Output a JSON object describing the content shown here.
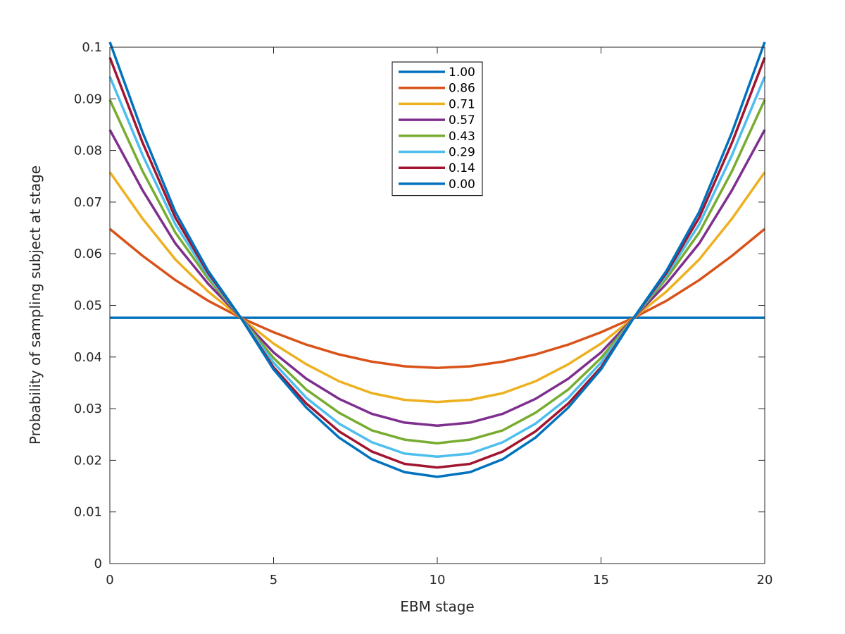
{
  "chart_data": {
    "type": "line",
    "title": "",
    "xlabel": "EBM stage",
    "ylabel": "Probability of sampling subject at stage",
    "xlim": [
      0,
      20
    ],
    "ylim": [
      0,
      0.1
    ],
    "xticks": [
      0,
      5,
      10,
      15,
      20
    ],
    "xtick_labels": [
      "0",
      "5",
      "10",
      "15",
      "20"
    ],
    "yticks": [
      0,
      0.01,
      0.02,
      0.03,
      0.04,
      0.05,
      0.06,
      0.07,
      0.08,
      0.09,
      0.1
    ],
    "ytick_labels": [
      "0",
      "0.01",
      "0.02",
      "0.03",
      "0.04",
      "0.05",
      "0.06",
      "0.07",
      "0.08",
      "0.09",
      "0.1"
    ],
    "grid": false,
    "legend_position": "top-center",
    "x": [
      0,
      1,
      2,
      3,
      4,
      5,
      6,
      7,
      8,
      9,
      10,
      11,
      12,
      13,
      14,
      15,
      16,
      17,
      18,
      19,
      20
    ],
    "series": [
      {
        "name": "1.00",
        "color": "#0072BD",
        "values": [
          0.0476,
          0.0476,
          0.0476,
          0.0476,
          0.0476,
          0.0476,
          0.0476,
          0.0476,
          0.0476,
          0.0476,
          0.0476,
          0.0476,
          0.0476,
          0.0476,
          0.0476,
          0.0476,
          0.0476,
          0.0476,
          0.0476,
          0.0476,
          0.0476
        ]
      },
      {
        "name": "0.86",
        "color": "#D95319",
        "values": [
          0.0648,
          0.0596,
          0.0549,
          0.0509,
          0.0476,
          0.0448,
          0.0424,
          0.0405,
          0.0391,
          0.0382,
          0.0379,
          0.0382,
          0.0391,
          0.0405,
          0.0424,
          0.0448,
          0.0476,
          0.0509,
          0.0549,
          0.0596,
          0.0648
        ]
      },
      {
        "name": "0.71",
        "color": "#EDB120",
        "values": [
          0.0758,
          0.0668,
          0.0589,
          0.0527,
          0.0476,
          0.0426,
          0.0386,
          0.0353,
          0.033,
          0.0317,
          0.0313,
          0.0317,
          0.033,
          0.0353,
          0.0386,
          0.0426,
          0.0476,
          0.0527,
          0.0589,
          0.0668,
          0.0758
        ]
      },
      {
        "name": "0.57",
        "color": "#7E2F8E",
        "values": [
          0.084,
          0.0723,
          0.062,
          0.0542,
          0.0476,
          0.0409,
          0.0358,
          0.0319,
          0.029,
          0.0273,
          0.0267,
          0.0273,
          0.029,
          0.0319,
          0.0358,
          0.0409,
          0.0476,
          0.0542,
          0.062,
          0.0723,
          0.084
        ]
      },
      {
        "name": "0.43",
        "color": "#77AC30",
        "values": [
          0.0898,
          0.076,
          0.0641,
          0.0552,
          0.0476,
          0.0398,
          0.0337,
          0.0292,
          0.0258,
          0.024,
          0.0233,
          0.024,
          0.0258,
          0.0292,
          0.0337,
          0.0398,
          0.0476,
          0.0552,
          0.0641,
          0.076,
          0.0898
        ]
      },
      {
        "name": "0.29",
        "color": "#4DBEEE",
        "values": [
          0.0943,
          0.0791,
          0.0657,
          0.0558,
          0.0476,
          0.0389,
          0.0321,
          0.0271,
          0.0235,
          0.0213,
          0.0207,
          0.0213,
          0.0235,
          0.0271,
          0.0321,
          0.0389,
          0.0476,
          0.0558,
          0.0657,
          0.0791,
          0.0943
        ]
      },
      {
        "name": "0.14",
        "color": "#A2142F",
        "values": [
          0.098,
          0.0815,
          0.067,
          0.0563,
          0.0476,
          0.038,
          0.031,
          0.0256,
          0.0217,
          0.0193,
          0.0186,
          0.0193,
          0.0217,
          0.0256,
          0.031,
          0.038,
          0.0476,
          0.0563,
          0.067,
          0.0815,
          0.098
        ]
      },
      {
        "name": "0.00",
        "color": "#0072BD",
        "values": [
          0.101,
          0.0835,
          0.0681,
          0.0567,
          0.0476,
          0.0376,
          0.0302,
          0.0244,
          0.0202,
          0.0177,
          0.0168,
          0.0177,
          0.0202,
          0.0244,
          0.0302,
          0.0376,
          0.0476,
          0.0567,
          0.0681,
          0.0835,
          0.101
        ]
      }
    ]
  }
}
